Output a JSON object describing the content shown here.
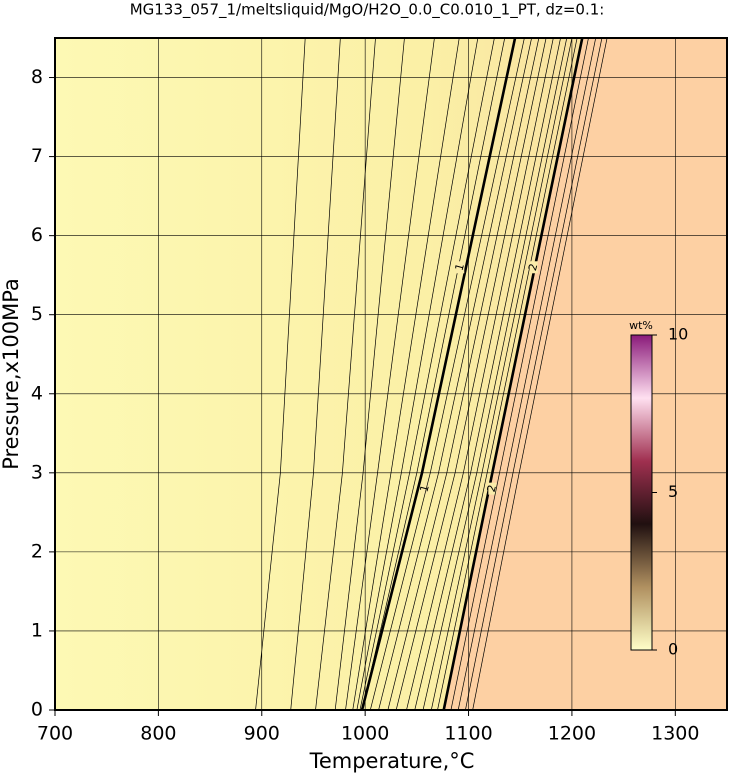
{
  "chart_data": {
    "type": "contour",
    "title": "MG133_057_1/meltsliquid/MgO/H2O_0.0_C0.010_1_PT, dz=0.1:",
    "x_label": "Temperature,°C",
    "y_label": "Pressure,x100MPa",
    "xlim": [
      700,
      1350
    ],
    "ylim": [
      0,
      8.5
    ],
    "xticks": [
      700,
      800,
      900,
      1000,
      1100,
      1200,
      1300
    ],
    "yticks": [
      0,
      1,
      2,
      3,
      4,
      5,
      6,
      7,
      8
    ],
    "grid": true,
    "contours": [
      {
        "level": 0.1,
        "x": [
          894,
          918,
          942
        ],
        "y": [
          0,
          3,
          8.5
        ]
      },
      {
        "level": 0.2,
        "x": [
          928,
          950,
          976
        ],
        "y": [
          0,
          3,
          8.5
        ]
      },
      {
        "level": 0.3,
        "x": [
          952,
          978,
          1010
        ],
        "y": [
          0,
          3,
          8.5
        ]
      },
      {
        "level": 0.4,
        "x": [
          971,
          998,
          1038
        ],
        "y": [
          0,
          3,
          8.5
        ]
      },
      {
        "level": 0.5,
        "x": [
          981,
          1012,
          1067
        ],
        "y": [
          0,
          3,
          8.5
        ]
      },
      {
        "level": 0.6,
        "x": [
          988,
          1025,
          1091
        ],
        "y": [
          0,
          3,
          8.5
        ]
      },
      {
        "level": 0.7,
        "x": [
          992,
          1035,
          1109
        ],
        "y": [
          0,
          3,
          8.5
        ]
      },
      {
        "level": 0.8,
        "x": [
          995,
          1043,
          1125
        ],
        "y": [
          0,
          3,
          8.5
        ]
      },
      {
        "level": 0.9,
        "x": [
          997,
          1050,
          1135
        ],
        "y": [
          0,
          3,
          8.5
        ]
      },
      {
        "level": 1,
        "x": [
          997,
          1055,
          1145
        ],
        "y": [
          0,
          3,
          8.5
        ],
        "bold": true,
        "label_positions": [
          [
            1058,
            2.8
          ],
          [
            1092,
            5.6
          ]
        ]
      },
      {
        "level": 1.1,
        "x": [
          1005,
          1063,
          1154
        ],
        "y": [
          0,
          3,
          8.5
        ]
      },
      {
        "level": 1.2,
        "x": [
          1013,
          1071,
          1161
        ],
        "y": [
          0,
          3,
          8.5
        ]
      },
      {
        "level": 1.3,
        "x": [
          1022,
          1079,
          1168
        ],
        "y": [
          0,
          3,
          8.5
        ]
      },
      {
        "level": 1.4,
        "x": [
          1030,
          1087,
          1175
        ],
        "y": [
          0,
          3,
          8.5
        ]
      },
      {
        "level": 1.5,
        "x": [
          1040,
          1095,
          1182
        ],
        "y": [
          0,
          3,
          8.5
        ]
      },
      {
        "level": 1.6,
        "x": [
          1048,
          1102,
          1189
        ],
        "y": [
          0,
          3,
          8.5
        ]
      },
      {
        "level": 1.7,
        "x": [
          1056,
          1108,
          1195
        ],
        "y": [
          0,
          3,
          8.5
        ]
      },
      {
        "level": 1.8,
        "x": [
          1064,
          1113,
          1200
        ],
        "y": [
          0,
          3,
          8.5
        ]
      },
      {
        "level": 1.9,
        "x": [
          1070,
          1118,
          1205
        ],
        "y": [
          0,
          3,
          8.5
        ]
      },
      {
        "level": 2,
        "x": [
          1076,
          1123,
          1210
        ],
        "y": [
          0,
          3,
          8.5
        ],
        "bold": true,
        "label_positions": [
          [
            1123,
            2.8
          ],
          [
            1163,
            5.6
          ]
        ]
      },
      {
        "level": 2.1,
        "x": [
          1083,
          1130,
          1216
        ],
        "y": [
          0,
          3,
          8.5
        ]
      },
      {
        "level": 2.2,
        "x": [
          1090,
          1137,
          1223
        ],
        "y": [
          0,
          3,
          8.5
        ]
      },
      {
        "level": 2.3,
        "x": [
          1097,
          1143,
          1229
        ],
        "y": [
          0,
          3,
          8.5
        ]
      },
      {
        "level": 2.4,
        "x": [
          1104,
          1149,
          1234
        ],
        "y": [
          0,
          3,
          8.5
        ]
      }
    ],
    "colorbar": {
      "title": "wt%",
      "lim": [
        0,
        10
      ],
      "ticks": [
        0,
        5,
        10
      ]
    }
  }
}
